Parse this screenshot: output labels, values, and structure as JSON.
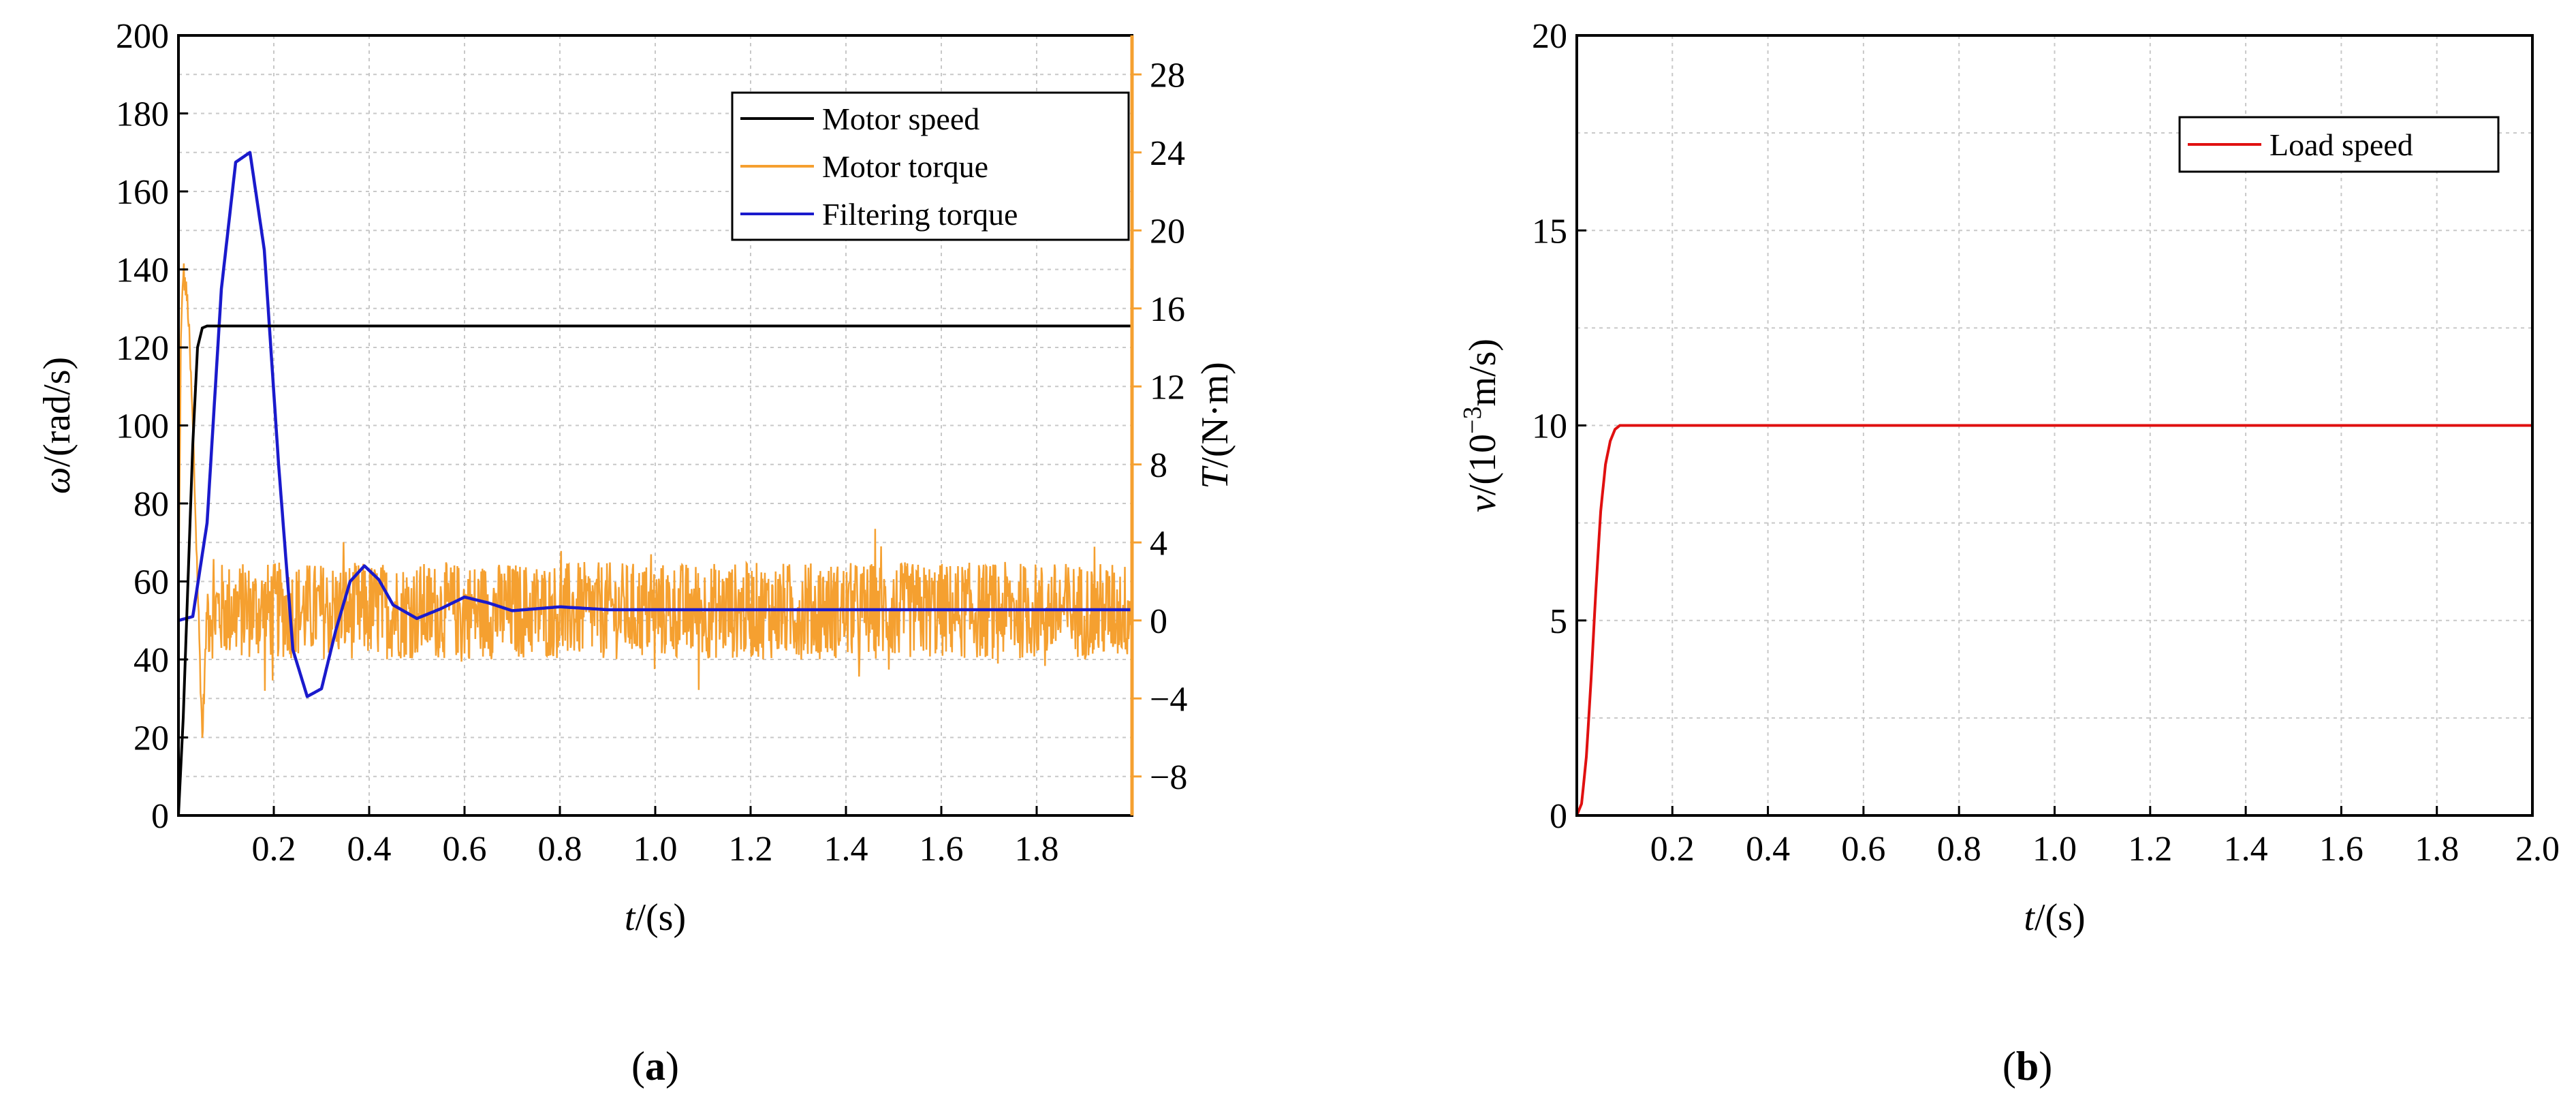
{
  "chart_data": [
    {
      "panel": "a",
      "type": "line",
      "panel_label_prefix": "(",
      "panel_label_letter": "a",
      "panel_label_suffix": ")",
      "xlabel_var": "t",
      "xlabel_unit": "/(s)",
      "ylabel_var": "ω",
      "ylabel_unit": "/(rad/s)",
      "y2label_var": "T",
      "y2label_unit": "/(N·m)",
      "xlim": [
        0,
        2.0
      ],
      "ylim": [
        0,
        200
      ],
      "y2lim": [
        -10,
        30
      ],
      "grid": true,
      "legend_position": "top-right",
      "x_ticks": [
        "0.2",
        "0.4",
        "0.6",
        "0.8",
        "1.0",
        "1.2",
        "1.4",
        "1.6",
        "1.8"
      ],
      "x_tick_values": [
        0.2,
        0.4,
        0.6,
        0.8,
        1.0,
        1.2,
        1.4,
        1.6,
        1.8
      ],
      "y_ticks": [
        "0",
        "20",
        "40",
        "60",
        "80",
        "100",
        "120",
        "140",
        "160",
        "180",
        "200"
      ],
      "y_tick_values": [
        0,
        20,
        40,
        60,
        80,
        100,
        120,
        140,
        160,
        180,
        200
      ],
      "y2_ticks": [
        "−8",
        "−4",
        "0",
        "4",
        "8",
        "12",
        "16",
        "20",
        "24",
        "28"
      ],
      "y2_tick_values": [
        -8,
        -4,
        0,
        4,
        8,
        12,
        16,
        20,
        24,
        28
      ],
      "series": [
        {
          "name": "Motor speed",
          "axis": "left",
          "color": "#000000",
          "x": [
            0,
            0.01,
            0.02,
            0.03,
            0.04,
            0.05,
            0.06,
            2.0
          ],
          "y": [
            0,
            25,
            60,
            95,
            120,
            125,
            125.5,
            125.5
          ]
        },
        {
          "name": "Motor torque",
          "axis": "right",
          "color": "#f5a030",
          "description_kind": "noisy",
          "x": [
            0,
            0.005,
            0.01,
            0.015,
            0.02,
            0.03,
            0.04,
            0.05,
            0.06,
            0.08,
            2.0
          ],
          "y": [
            0.5,
            14,
            18,
            17,
            16,
            10,
            2,
            -6,
            0.5,
            0.5,
            0.5
          ],
          "noise_amplitude": 2.5
        },
        {
          "name": "Filtering torque",
          "axis": "right",
          "color": "#1a1acc",
          "x": [
            0,
            0.03,
            0.06,
            0.09,
            0.12,
            0.15,
            0.18,
            0.21,
            0.24,
            0.27,
            0.3,
            0.33,
            0.36,
            0.39,
            0.42,
            0.45,
            0.5,
            0.55,
            0.6,
            0.65,
            0.7,
            0.8,
            0.9,
            2.0
          ],
          "y": [
            0,
            0.2,
            5,
            17,
            23.5,
            24,
            19,
            8,
            -1.5,
            -3.9,
            -3.5,
            -0.5,
            2,
            2.8,
            2.1,
            0.8,
            0.1,
            0.6,
            1.2,
            0.9,
            0.5,
            0.7,
            0.55,
            0.55
          ]
        }
      ]
    },
    {
      "panel": "b",
      "type": "line",
      "panel_label_prefix": "(",
      "panel_label_letter": "b",
      "panel_label_suffix": ")",
      "xlabel_var": "t",
      "xlabel_unit": "/(s)",
      "ylabel_var": "v",
      "ylabel_unit_pre": "/(10",
      "ylabel_unit_sup": "−3",
      "ylabel_unit_post": "m/s)",
      "xlim": [
        0,
        2.0
      ],
      "ylim": [
        0,
        20
      ],
      "grid": true,
      "legend_position": "top-right",
      "x_ticks": [
        "0.2",
        "0.4",
        "0.6",
        "0.8",
        "1.0",
        "1.2",
        "1.4",
        "1.6",
        "1.8",
        "2.0"
      ],
      "x_tick_values": [
        0.2,
        0.4,
        0.6,
        0.8,
        1.0,
        1.2,
        1.4,
        1.6,
        1.8,
        2.0
      ],
      "y_ticks": [
        "0",
        "5",
        "10",
        "15",
        "20"
      ],
      "y_tick_values": [
        0,
        5,
        10,
        15,
        20
      ],
      "series": [
        {
          "name": "Load speed",
          "color": "#e01010",
          "x": [
            0,
            0.01,
            0.02,
            0.03,
            0.04,
            0.05,
            0.06,
            0.07,
            0.08,
            0.09,
            0.1,
            2.0
          ],
          "y": [
            0,
            0.3,
            1.5,
            3.5,
            5.8,
            7.8,
            9.0,
            9.6,
            9.9,
            10,
            10,
            10
          ]
        }
      ]
    }
  ]
}
